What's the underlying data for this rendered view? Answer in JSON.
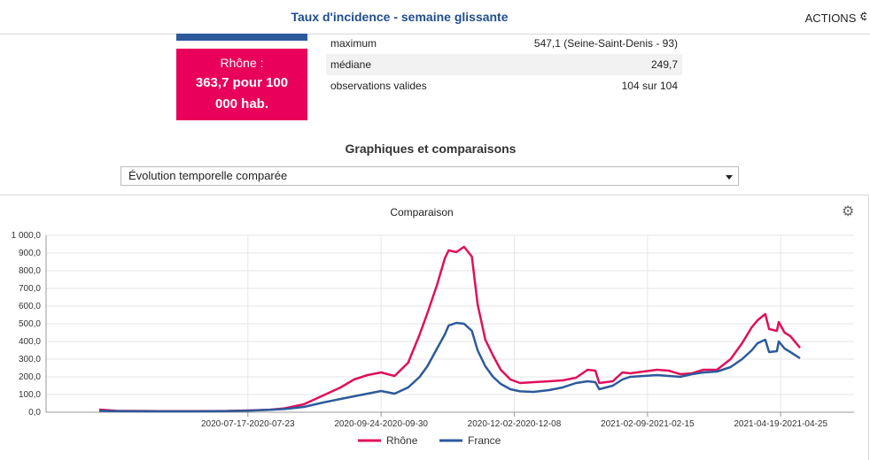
{
  "header": {
    "title": "Taux d'incidence - semaine glissante",
    "actions_label": "ACTIONS",
    "actions_icon": "gear-icon"
  },
  "card": {
    "label": "Rhône :",
    "value_line1": "363,7 pour 100",
    "value_line2": "000 hab.",
    "color": "#e8005a"
  },
  "stats": [
    {
      "label": "maximum",
      "value": "547,1 (Seine-Saint-Denis - 93)"
    },
    {
      "label": "médiane",
      "value": "249,7"
    },
    {
      "label": "observations valides",
      "value": "104 sur 104"
    }
  ],
  "section_title": "Graphiques et comparaisons",
  "dropdown": {
    "selected": "Évolution temporelle comparée"
  },
  "chart_data": {
    "type": "line",
    "title": "Comparaison",
    "ylim": [
      0,
      1000
    ],
    "y_ticks": [
      "0,0",
      "100,0",
      "200,0",
      "300,0",
      "400,0",
      "500,0",
      "600,0",
      "700,0",
      "800,0",
      "900,0",
      "1 000,0"
    ],
    "x_ticks": [
      "2020-07-17-2020-07-23",
      "2020-09-24-2020-09-30",
      "2020-12-02-2020-12-08",
      "2021-02-09-2021-02-15",
      "2021-04-19-2021-04-25"
    ],
    "x_start": "2020-05-01",
    "x_end": "2021-04-29",
    "grid": true,
    "legend_position": "bottom",
    "series": [
      {
        "name": "Rhône",
        "color": "#e0105a",
        "points": [
          [
            "2020-05-01",
            15
          ],
          [
            "2020-05-10",
            8
          ],
          [
            "2020-06-01",
            6
          ],
          [
            "2020-06-20",
            6
          ],
          [
            "2020-07-05",
            7
          ],
          [
            "2020-07-17",
            10
          ],
          [
            "2020-07-28",
            14
          ],
          [
            "2020-08-05",
            22
          ],
          [
            "2020-08-15",
            45
          ],
          [
            "2020-08-25",
            95
          ],
          [
            "2020-09-03",
            140
          ],
          [
            "2020-09-10",
            185
          ],
          [
            "2020-09-17",
            210
          ],
          [
            "2020-09-24",
            225
          ],
          [
            "2020-10-01",
            205
          ],
          [
            "2020-10-08",
            280
          ],
          [
            "2020-10-14",
            440
          ],
          [
            "2020-10-18",
            560
          ],
          [
            "2020-10-23",
            720
          ],
          [
            "2020-10-27",
            870
          ],
          [
            "2020-10-29",
            915
          ],
          [
            "2020-11-02",
            905
          ],
          [
            "2020-11-06",
            935
          ],
          [
            "2020-11-10",
            880
          ],
          [
            "2020-11-13",
            610
          ],
          [
            "2020-11-17",
            410
          ],
          [
            "2020-11-21",
            320
          ],
          [
            "2020-11-25",
            240
          ],
          [
            "2020-11-30",
            185
          ],
          [
            "2020-12-05",
            165
          ],
          [
            "2020-12-12",
            170
          ],
          [
            "2020-12-20",
            175
          ],
          [
            "2020-12-27",
            180
          ],
          [
            "2021-01-03",
            195
          ],
          [
            "2021-01-09",
            240
          ],
          [
            "2021-01-13",
            235
          ],
          [
            "2021-01-15",
            165
          ],
          [
            "2021-01-22",
            175
          ],
          [
            "2021-01-27",
            225
          ],
          [
            "2021-01-31",
            220
          ],
          [
            "2021-02-07",
            230
          ],
          [
            "2021-02-14",
            240
          ],
          [
            "2021-02-20",
            235
          ],
          [
            "2021-02-26",
            215
          ],
          [
            "2021-03-04",
            220
          ],
          [
            "2021-03-10",
            240
          ],
          [
            "2021-03-17",
            240
          ],
          [
            "2021-03-24",
            300
          ],
          [
            "2021-03-30",
            390
          ],
          [
            "2021-04-04",
            480
          ],
          [
            "2021-04-07",
            520
          ],
          [
            "2021-04-11",
            555
          ],
          [
            "2021-04-13",
            470
          ],
          [
            "2021-04-17",
            460
          ],
          [
            "2021-04-18",
            510
          ],
          [
            "2021-04-21",
            450
          ],
          [
            "2021-04-24",
            430
          ],
          [
            "2021-04-29",
            364
          ]
        ]
      },
      {
        "name": "France",
        "color": "#2c5a9b",
        "points": [
          [
            "2020-05-01",
            8
          ],
          [
            "2020-05-10",
            6
          ],
          [
            "2020-06-01",
            5
          ],
          [
            "2020-06-20",
            5
          ],
          [
            "2020-07-05",
            6
          ],
          [
            "2020-07-17",
            9
          ],
          [
            "2020-07-28",
            14
          ],
          [
            "2020-08-05",
            18
          ],
          [
            "2020-08-15",
            30
          ],
          [
            "2020-08-25",
            55
          ],
          [
            "2020-09-03",
            75
          ],
          [
            "2020-09-10",
            90
          ],
          [
            "2020-09-17",
            105
          ],
          [
            "2020-09-24",
            120
          ],
          [
            "2020-10-01",
            105
          ],
          [
            "2020-10-08",
            140
          ],
          [
            "2020-10-14",
            200
          ],
          [
            "2020-10-18",
            260
          ],
          [
            "2020-10-23",
            360
          ],
          [
            "2020-10-27",
            440
          ],
          [
            "2020-10-29",
            490
          ],
          [
            "2020-11-02",
            505
          ],
          [
            "2020-11-06",
            500
          ],
          [
            "2020-11-10",
            460
          ],
          [
            "2020-11-13",
            350
          ],
          [
            "2020-11-17",
            260
          ],
          [
            "2020-11-21",
            200
          ],
          [
            "2020-11-25",
            160
          ],
          [
            "2020-11-30",
            130
          ],
          [
            "2020-12-05",
            118
          ],
          [
            "2020-12-12",
            115
          ],
          [
            "2020-12-20",
            125
          ],
          [
            "2020-12-27",
            140
          ],
          [
            "2021-01-03",
            165
          ],
          [
            "2021-01-09",
            175
          ],
          [
            "2021-01-13",
            170
          ],
          [
            "2021-01-15",
            130
          ],
          [
            "2021-01-22",
            150
          ],
          [
            "2021-01-27",
            185
          ],
          [
            "2021-01-31",
            200
          ],
          [
            "2021-02-07",
            205
          ],
          [
            "2021-02-14",
            210
          ],
          [
            "2021-02-20",
            205
          ],
          [
            "2021-02-26",
            200
          ],
          [
            "2021-03-04",
            215
          ],
          [
            "2021-03-10",
            225
          ],
          [
            "2021-03-17",
            230
          ],
          [
            "2021-03-24",
            255
          ],
          [
            "2021-03-30",
            300
          ],
          [
            "2021-04-04",
            350
          ],
          [
            "2021-04-07",
            390
          ],
          [
            "2021-04-11",
            410
          ],
          [
            "2021-04-13",
            340
          ],
          [
            "2021-04-17",
            345
          ],
          [
            "2021-04-18",
            400
          ],
          [
            "2021-04-21",
            360
          ],
          [
            "2021-04-24",
            340
          ],
          [
            "2021-04-29",
            305
          ]
        ]
      }
    ]
  }
}
